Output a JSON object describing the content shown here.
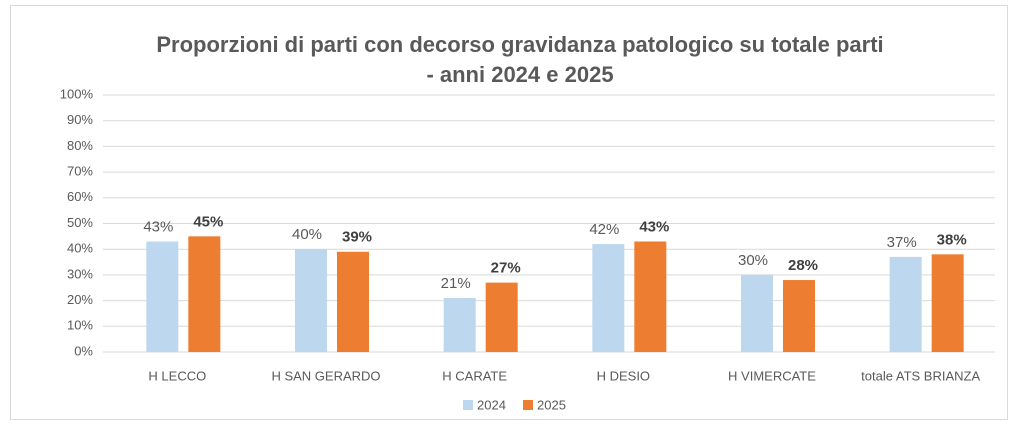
{
  "chart_data": {
    "type": "bar",
    "title": [
      "Proporzioni di parti con decorso gravidanza patologico su totale parti",
      "- anni 2024 e 2025"
    ],
    "categories": [
      "H LECCO",
      "H SAN GERARDO",
      "H CARATE",
      "H DESIO",
      "H VIMERCATE",
      "totale ATS BRIANZA"
    ],
    "series": [
      {
        "name": "2024",
        "color": "#bdd7ee",
        "values": [
          43,
          40,
          21,
          42,
          30,
          37
        ],
        "value_labels": [
          "43%",
          "40%",
          "21%",
          "42%",
          "30%",
          "37%"
        ]
      },
      {
        "name": "2025",
        "color": "#ed7d31",
        "values": [
          45,
          39,
          27,
          43,
          28,
          38
        ],
        "value_labels": [
          "45%",
          "39%",
          "27%",
          "43%",
          "28%",
          "38%"
        ]
      }
    ],
    "ylim": [
      0,
      100
    ],
    "yticks": [
      {
        "value": 0,
        "label": "0%"
      },
      {
        "value": 10,
        "label": "10%"
      },
      {
        "value": 20,
        "label": "20%"
      },
      {
        "value": 30,
        "label": "30%"
      },
      {
        "value": 40,
        "label": "40%"
      },
      {
        "value": 50,
        "label": "50%"
      },
      {
        "value": 60,
        "label": "60%"
      },
      {
        "value": 70,
        "label": "70%"
      },
      {
        "value": 80,
        "label": "80%"
      },
      {
        "value": 90,
        "label": "90%"
      },
      {
        "value": 100,
        "label": "100%"
      }
    ],
    "grid": true,
    "legend": "bottom"
  }
}
